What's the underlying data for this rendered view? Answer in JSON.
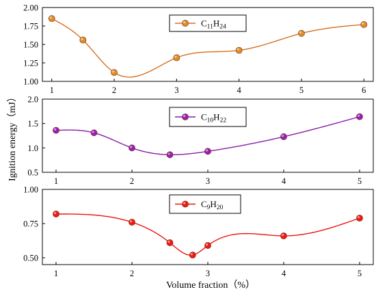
{
  "chart_data": [
    {
      "type": "scatter",
      "series": [
        {
          "name": "C11H24",
          "legend_label": {
            "base": "C",
            "sub1": "11",
            "mid": "H",
            "sub2": "24"
          },
          "x": [
            1,
            1.5,
            2,
            3,
            4,
            5,
            6
          ],
          "y": [
            1.85,
            1.56,
            1.12,
            1.32,
            1.42,
            1.65,
            1.77
          ],
          "color": "#d86d1f",
          "marker_color": "#e08a2a"
        }
      ],
      "xlim": [
        0.85,
        6.15
      ],
      "ylim": [
        1.0,
        2.0
      ],
      "x_ticks": [
        1,
        2,
        3,
        4,
        5,
        6
      ],
      "y_ticks": [
        "1.00",
        "1.25",
        "1.50",
        "1.75",
        "2.00"
      ],
      "legend_position": "top-center",
      "grid": false
    },
    {
      "type": "scatter",
      "series": [
        {
          "name": "C10H22",
          "legend_label": {
            "base": "C",
            "sub1": "10",
            "mid": "H",
            "sub2": "22"
          },
          "x": [
            1,
            1.5,
            2,
            2.5,
            3,
            4,
            5
          ],
          "y": [
            1.36,
            1.31,
            1.0,
            0.86,
            0.93,
            1.23,
            1.64
          ],
          "color": "#8a1ba8",
          "marker_color": "#9b1fb5"
        }
      ],
      "xlim": [
        0.82,
        5.18
      ],
      "ylim": [
        0.5,
        2.0
      ],
      "x_ticks": [
        1,
        2,
        3,
        4,
        5
      ],
      "y_ticks": [
        "0.5",
        "1.0",
        "1.5",
        "2.0"
      ],
      "legend_position": "top-center",
      "grid": false
    },
    {
      "type": "scatter",
      "series": [
        {
          "name": "C9H20",
          "legend_label": {
            "base": "C",
            "sub1": "9",
            "mid": "H",
            "sub2": "20"
          },
          "x": [
            1,
            2,
            2.5,
            2.8,
            3,
            4,
            5
          ],
          "y": [
            0.82,
            0.76,
            0.61,
            0.52,
            0.59,
            0.66,
            0.79
          ],
          "color": "#ef1010",
          "marker_color": "#f01818"
        }
      ],
      "xlim": [
        0.82,
        5.18
      ],
      "ylim": [
        0.45,
        1.0
      ],
      "x_ticks": [
        1,
        2,
        3,
        4,
        5
      ],
      "y_ticks": [
        "0.50",
        "0.75",
        "1.00"
      ],
      "legend_position": "top-center",
      "grid": false
    }
  ],
  "ylabel": "Ignition energy（mJ）",
  "xlabel": "Volume fraction（%）"
}
